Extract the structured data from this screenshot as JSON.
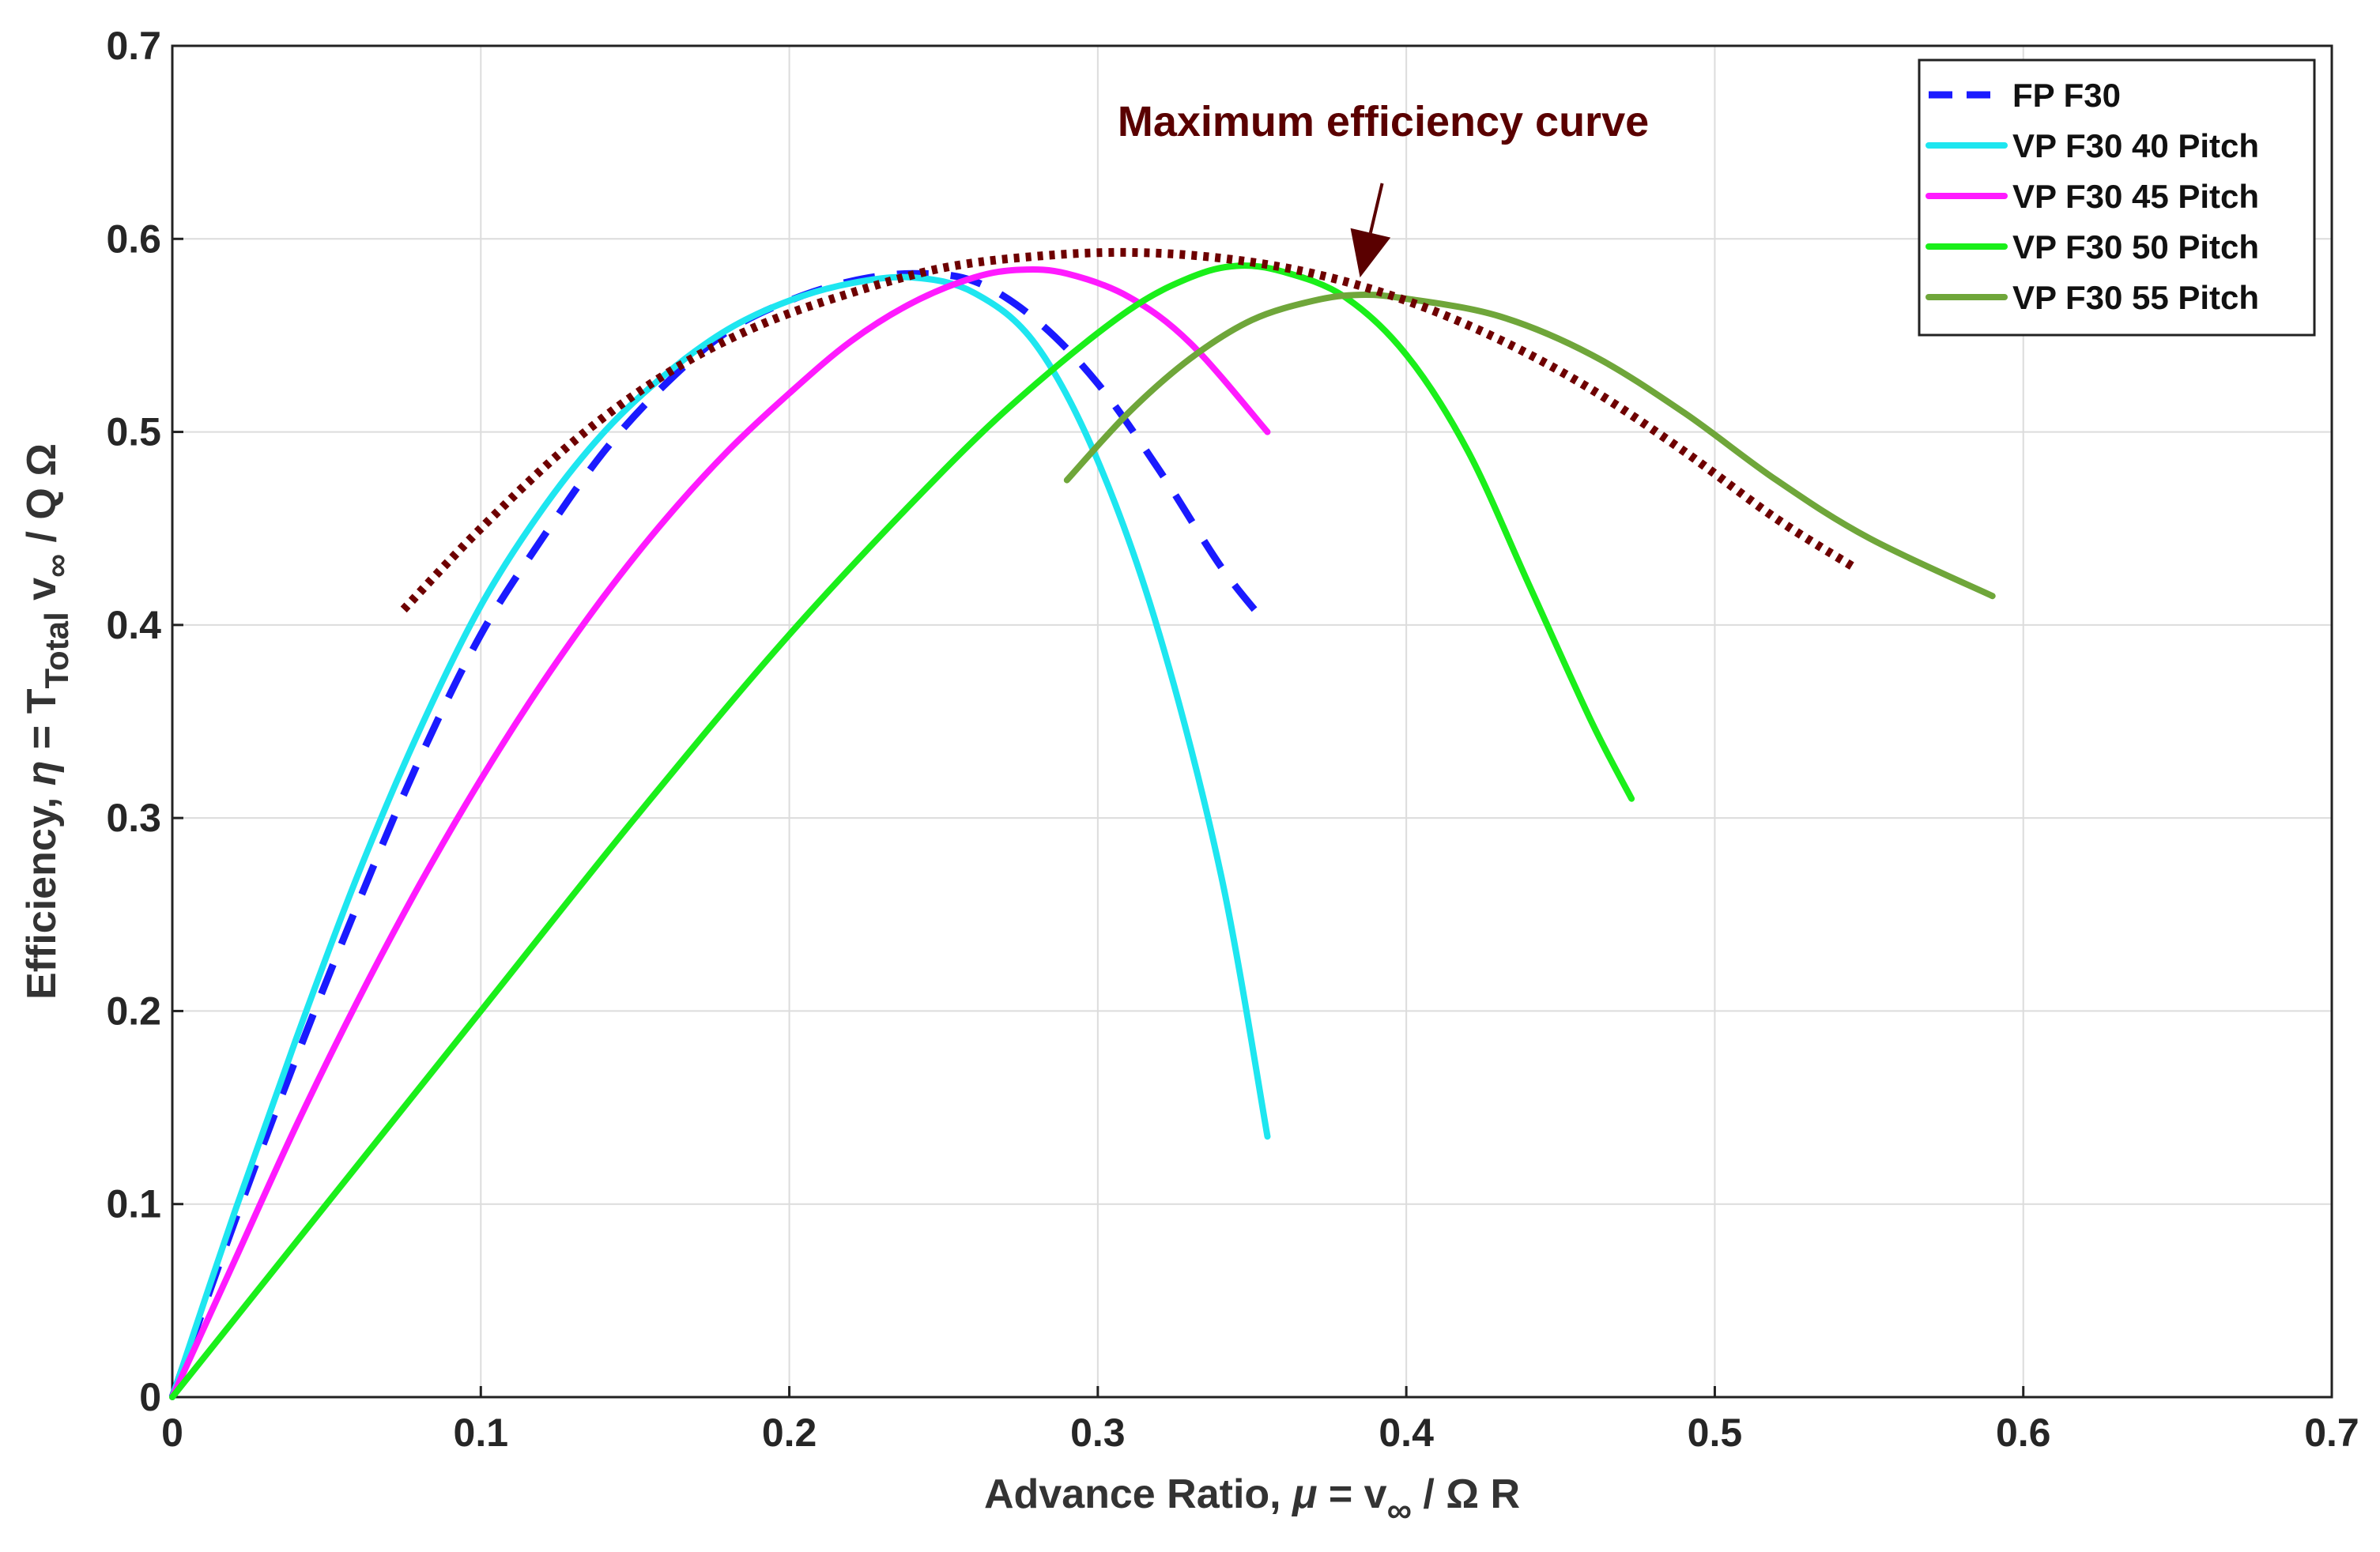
{
  "chart_data": {
    "type": "line",
    "title": "",
    "xlabel": {
      "prefix": "Advance Ratio,  ",
      "mu": "μ",
      "eq": " = v",
      "sub": "∞",
      "tail": " / Ω R"
    },
    "ylabel": {
      "prefix": "Efficiency, ",
      "eta": "η",
      "eq": " = T",
      "sub": "Total",
      "mid": " v",
      "sub2": "∞",
      "tail": " / Q Ω"
    },
    "xlim": [
      0,
      0.7
    ],
    "ylim": [
      0,
      0.7
    ],
    "xticks": [
      "0",
      "0.1",
      "0.2",
      "0.3",
      "0.4",
      "0.5",
      "0.6",
      "0.7"
    ],
    "yticks": [
      "0",
      "0.1",
      "0.2",
      "0.3",
      "0.4",
      "0.5",
      "0.6",
      "0.7"
    ],
    "grid": true,
    "legend_position": "top-right",
    "annotation": {
      "text": "Maximum efficiency curve",
      "points_to": [
        0.385,
        0.58
      ]
    },
    "series": [
      {
        "name": "FP F30",
        "color": "#1a1aff",
        "style": "dashed",
        "x": [
          0.0,
          0.02,
          0.04,
          0.06,
          0.08,
          0.1,
          0.12,
          0.14,
          0.16,
          0.18,
          0.2,
          0.22,
          0.24,
          0.26,
          0.28,
          0.3,
          0.32,
          0.34,
          0.355
        ],
        "y": [
          0.0,
          0.09,
          0.175,
          0.255,
          0.33,
          0.395,
          0.445,
          0.49,
          0.525,
          0.552,
          0.568,
          0.578,
          0.582,
          0.578,
          0.558,
          0.525,
          0.48,
          0.43,
          0.4
        ]
      },
      {
        "name": "VP F30 40 Pitch",
        "color": "#1ee6f0",
        "style": "solid",
        "x": [
          0.0,
          0.02,
          0.04,
          0.06,
          0.08,
          0.1,
          0.12,
          0.14,
          0.16,
          0.18,
          0.2,
          0.22,
          0.24,
          0.26,
          0.28,
          0.3,
          0.32,
          0.34,
          0.355
        ],
        "y": [
          0.0,
          0.095,
          0.185,
          0.27,
          0.345,
          0.41,
          0.46,
          0.5,
          0.53,
          0.553,
          0.568,
          0.577,
          0.58,
          0.572,
          0.545,
          0.485,
          0.395,
          0.27,
          0.135
        ]
      },
      {
        "name": "VP F30 45 Pitch",
        "color": "#ff1aff",
        "style": "solid",
        "x": [
          0.0,
          0.02,
          0.04,
          0.06,
          0.08,
          0.1,
          0.12,
          0.14,
          0.16,
          0.18,
          0.2,
          0.22,
          0.24,
          0.26,
          0.275,
          0.29,
          0.31,
          0.33,
          0.355
        ],
        "y": [
          0.0,
          0.07,
          0.14,
          0.205,
          0.265,
          0.32,
          0.37,
          0.415,
          0.455,
          0.49,
          0.52,
          0.547,
          0.567,
          0.58,
          0.584,
          0.582,
          0.57,
          0.546,
          0.5
        ]
      },
      {
        "name": "VP F30 50 Pitch",
        "color": "#1aef1a",
        "style": "solid",
        "x": [
          0.0,
          0.05,
          0.1,
          0.15,
          0.2,
          0.25,
          0.28,
          0.31,
          0.33,
          0.345,
          0.36,
          0.38,
          0.4,
          0.42,
          0.44,
          0.46,
          0.473
        ],
        "y": [
          0.0,
          0.1,
          0.2,
          0.3,
          0.395,
          0.48,
          0.525,
          0.563,
          0.58,
          0.586,
          0.583,
          0.57,
          0.54,
          0.49,
          0.42,
          0.35,
          0.31
        ]
      },
      {
        "name": "VP F30 55 Pitch",
        "color": "#6fa63a",
        "style": "solid",
        "x": [
          0.29,
          0.31,
          0.33,
          0.35,
          0.37,
          0.385,
          0.4,
          0.43,
          0.46,
          0.49,
          0.52,
          0.55,
          0.59
        ],
        "y": [
          0.475,
          0.51,
          0.538,
          0.558,
          0.568,
          0.571,
          0.569,
          0.56,
          0.54,
          0.51,
          0.475,
          0.445,
          0.415
        ]
      },
      {
        "name": "Maximum efficiency curve",
        "color": "#6e0000",
        "style": "dotted",
        "in_legend": false,
        "x": [
          0.075,
          0.1,
          0.13,
          0.16,
          0.19,
          0.22,
          0.25,
          0.28,
          0.31,
          0.34,
          0.37,
          0.4,
          0.43,
          0.46,
          0.49,
          0.52,
          0.545
        ],
        "y": [
          0.408,
          0.45,
          0.495,
          0.53,
          0.555,
          0.572,
          0.585,
          0.591,
          0.593,
          0.59,
          0.582,
          0.568,
          0.548,
          0.522,
          0.49,
          0.455,
          0.43
        ]
      }
    ]
  }
}
